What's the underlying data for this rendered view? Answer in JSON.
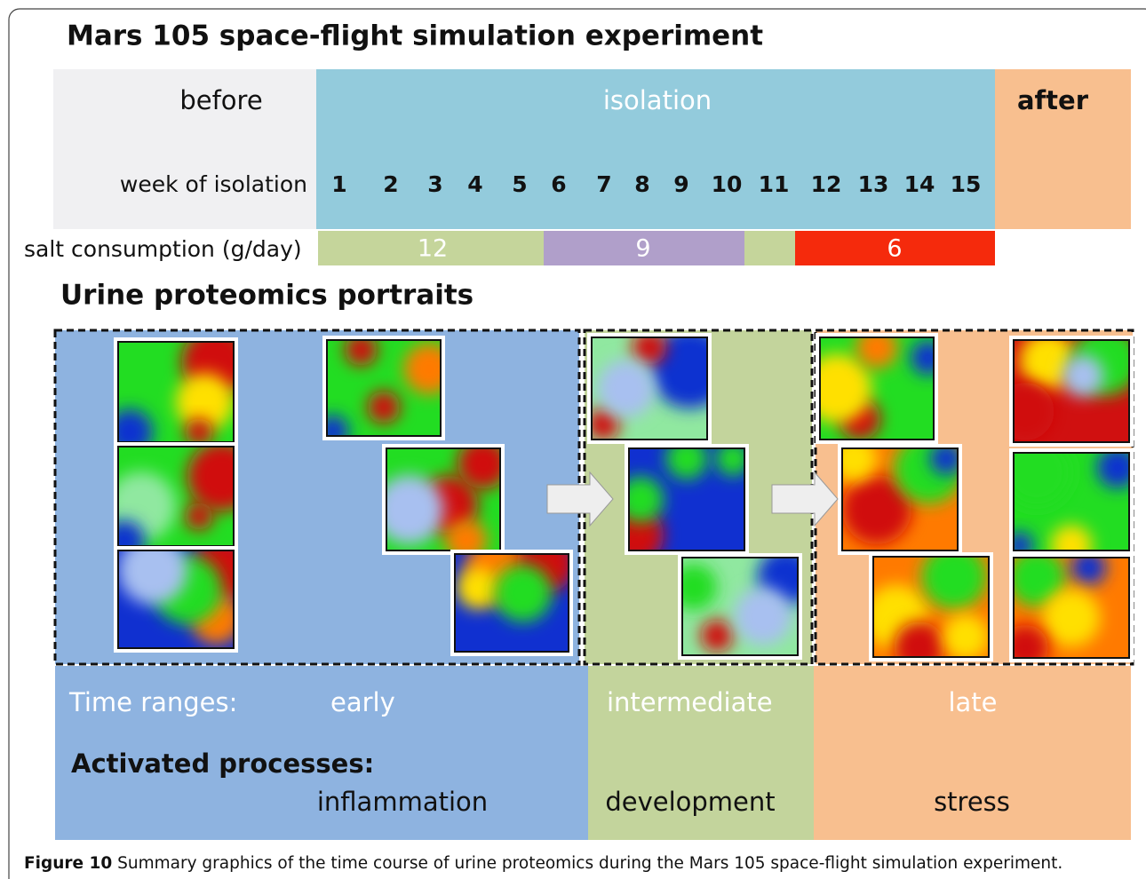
{
  "title": "Mars 105 space-flight simulation experiment",
  "phases": [
    "before",
    "isolation",
    "after"
  ],
  "week_label": "week of isolation",
  "weeks": [
    1,
    2,
    3,
    4,
    5,
    6,
    7,
    8,
    9,
    10,
    11,
    12,
    13,
    14,
    15
  ],
  "salt_label": "salt consumption (g/day)",
  "salt_segments": [
    12,
    9,
    6
  ],
  "section_title": "Urine proteomics portraits",
  "time_ranges_label": "Time ranges:",
  "time_ranges": [
    "early",
    "intermediate",
    "late"
  ],
  "processes_label": "Activated processes:",
  "processes": [
    "inflammation",
    "development",
    "stress"
  ],
  "caption": {
    "label": "Figure 10",
    "text": "Summary graphics of the time course of urine proteomics during the Mars 105 space-flight simulation experiment."
  }
}
